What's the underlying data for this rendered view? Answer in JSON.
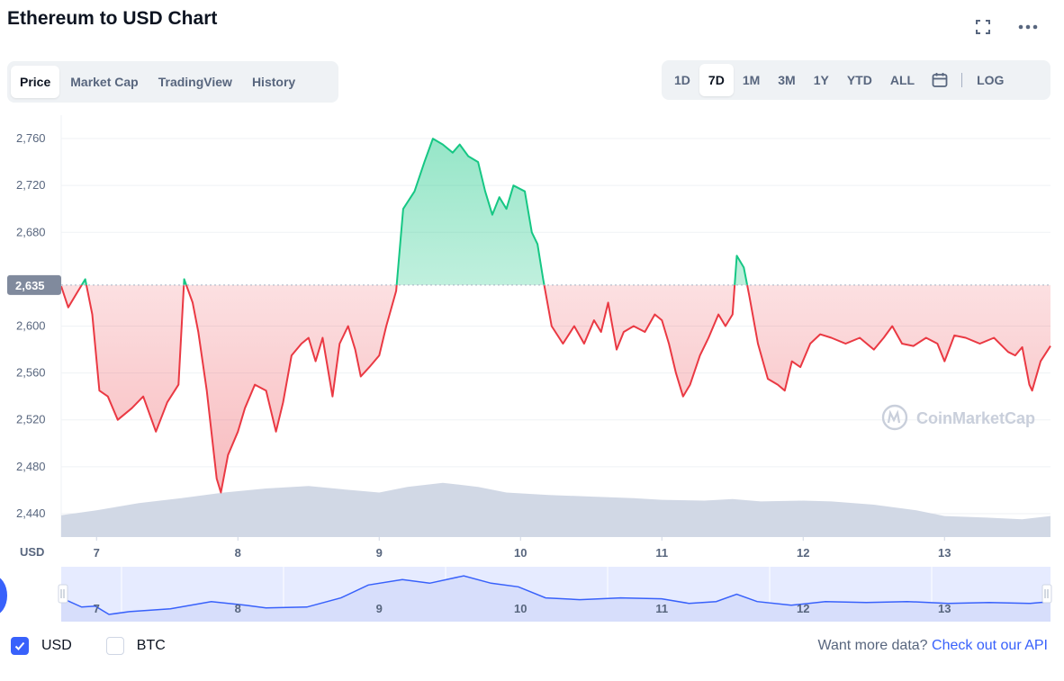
{
  "title": "Ethereum to USD Chart",
  "icons": {
    "expand": "expand-icon",
    "more": "more-icon",
    "calendar": "calendar-icon"
  },
  "tabs": [
    {
      "label": "Price",
      "active": true
    },
    {
      "label": "Market Cap",
      "active": false
    },
    {
      "label": "TradingView",
      "active": false
    },
    {
      "label": "History",
      "active": false
    }
  ],
  "ranges": {
    "items": [
      {
        "label": "1D",
        "active": false
      },
      {
        "label": "7D",
        "active": true
      },
      {
        "label": "1M",
        "active": false
      },
      {
        "label": "3M",
        "active": false
      },
      {
        "label": "1Y",
        "active": false
      },
      {
        "label": "YTD",
        "active": false
      },
      {
        "label": "ALL",
        "active": false
      }
    ],
    "log_label": "LOG"
  },
  "colors": {
    "up": "#16c784",
    "down": "#ea3943",
    "volume": "#cfd6e4",
    "navigator_line": "#3861fb",
    "navigator_fill": "#e6ebff",
    "current_price_bg": "#808a9d",
    "accent": "#3861fb"
  },
  "watermark": "CoinMarketCap",
  "chart_data": {
    "type": "line",
    "currency_label": "USD",
    "reference_price": 2635,
    "reference_label": "2,635",
    "ylim": [
      2420,
      2780
    ],
    "y_ticks": [
      2440,
      2480,
      2520,
      2560,
      2600,
      2680,
      2720,
      2760
    ],
    "y_tick_labels": [
      "2,440",
      "2,480",
      "2,520",
      "2,560",
      "2,600",
      "2,680",
      "2,720",
      "2,760"
    ],
    "xlim": [
      6.75,
      13.75
    ],
    "x_ticks": [
      7,
      8,
      9,
      10,
      11,
      12,
      13
    ],
    "x_tick_labels": [
      "7",
      "8",
      "9",
      "10",
      "11",
      "12",
      "13"
    ],
    "series": [
      {
        "values": [
          [
            6.75,
            2634
          ],
          [
            6.8,
            2616
          ],
          [
            6.87,
            2630
          ],
          [
            6.92,
            2640
          ],
          [
            6.97,
            2610
          ],
          [
            7.02,
            2545
          ],
          [
            7.08,
            2540
          ],
          [
            7.15,
            2520
          ],
          [
            7.25,
            2530
          ],
          [
            7.33,
            2540
          ],
          [
            7.42,
            2510
          ],
          [
            7.5,
            2535
          ],
          [
            7.58,
            2550
          ],
          [
            7.62,
            2640
          ],
          [
            7.68,
            2620
          ],
          [
            7.72,
            2595
          ],
          [
            7.78,
            2545
          ],
          [
            7.85,
            2470
          ],
          [
            7.88,
            2458
          ],
          [
            7.93,
            2490
          ],
          [
            8.0,
            2510
          ],
          [
            8.05,
            2530
          ],
          [
            8.12,
            2550
          ],
          [
            8.2,
            2545
          ],
          [
            8.27,
            2510
          ],
          [
            8.32,
            2535
          ],
          [
            8.38,
            2575
          ],
          [
            8.45,
            2585
          ],
          [
            8.5,
            2590
          ],
          [
            8.55,
            2570
          ],
          [
            8.6,
            2590
          ],
          [
            8.67,
            2540
          ],
          [
            8.72,
            2585
          ],
          [
            8.78,
            2600
          ],
          [
            8.83,
            2580
          ],
          [
            8.87,
            2557
          ],
          [
            8.93,
            2565
          ],
          [
            9.0,
            2575
          ],
          [
            9.05,
            2600
          ],
          [
            9.12,
            2630
          ],
          [
            9.17,
            2700
          ],
          [
            9.25,
            2715
          ],
          [
            9.32,
            2740
          ],
          [
            9.38,
            2760
          ],
          [
            9.45,
            2755
          ],
          [
            9.52,
            2748
          ],
          [
            9.57,
            2755
          ],
          [
            9.63,
            2745
          ],
          [
            9.7,
            2740
          ],
          [
            9.75,
            2715
          ],
          [
            9.8,
            2695
          ],
          [
            9.85,
            2710
          ],
          [
            9.9,
            2700
          ],
          [
            9.95,
            2720
          ],
          [
            10.03,
            2715
          ],
          [
            10.08,
            2680
          ],
          [
            10.12,
            2670
          ],
          [
            10.16,
            2640
          ],
          [
            10.22,
            2600
          ],
          [
            10.3,
            2585
          ],
          [
            10.38,
            2600
          ],
          [
            10.45,
            2585
          ],
          [
            10.52,
            2605
          ],
          [
            10.57,
            2595
          ],
          [
            10.62,
            2620
          ],
          [
            10.68,
            2580
          ],
          [
            10.73,
            2595
          ],
          [
            10.8,
            2600
          ],
          [
            10.88,
            2595
          ],
          [
            10.95,
            2610
          ],
          [
            11.0,
            2605
          ],
          [
            11.05,
            2585
          ],
          [
            11.1,
            2560
          ],
          [
            11.15,
            2540
          ],
          [
            11.2,
            2550
          ],
          [
            11.27,
            2575
          ],
          [
            11.33,
            2590
          ],
          [
            11.4,
            2610
          ],
          [
            11.45,
            2600
          ],
          [
            11.5,
            2610
          ],
          [
            11.53,
            2660
          ],
          [
            11.58,
            2650
          ],
          [
            11.62,
            2625
          ],
          [
            11.68,
            2585
          ],
          [
            11.75,
            2555
          ],
          [
            11.82,
            2550
          ],
          [
            11.87,
            2545
          ],
          [
            11.92,
            2570
          ],
          [
            11.98,
            2565
          ],
          [
            12.05,
            2585
          ],
          [
            12.12,
            2593
          ],
          [
            12.2,
            2590
          ],
          [
            12.3,
            2585
          ],
          [
            12.4,
            2590
          ],
          [
            12.5,
            2580
          ],
          [
            12.57,
            2590
          ],
          [
            12.63,
            2600
          ],
          [
            12.7,
            2585
          ],
          [
            12.78,
            2583
          ],
          [
            12.87,
            2590
          ],
          [
            12.95,
            2585
          ],
          [
            13.0,
            2570
          ],
          [
            13.07,
            2592
          ],
          [
            13.15,
            2590
          ],
          [
            13.25,
            2585
          ],
          [
            13.35,
            2590
          ],
          [
            13.45,
            2578
          ],
          [
            13.5,
            2575
          ],
          [
            13.55,
            2582
          ],
          [
            13.6,
            2550
          ],
          [
            13.62,
            2545
          ],
          [
            13.68,
            2570
          ],
          [
            13.75,
            2583
          ]
        ]
      }
    ],
    "volume_relative": [
      [
        6.75,
        0.27
      ],
      [
        7.0,
        0.33
      ],
      [
        7.3,
        0.42
      ],
      [
        7.6,
        0.48
      ],
      [
        7.9,
        0.55
      ],
      [
        8.2,
        0.6
      ],
      [
        8.5,
        0.63
      ],
      [
        8.8,
        0.58
      ],
      [
        9.0,
        0.55
      ],
      [
        9.2,
        0.62
      ],
      [
        9.45,
        0.67
      ],
      [
        9.7,
        0.62
      ],
      [
        9.9,
        0.55
      ],
      [
        10.2,
        0.52
      ],
      [
        10.5,
        0.5
      ],
      [
        10.8,
        0.48
      ],
      [
        11.0,
        0.46
      ],
      [
        11.3,
        0.45
      ],
      [
        11.5,
        0.47
      ],
      [
        11.7,
        0.44
      ],
      [
        12.0,
        0.45
      ],
      [
        12.2,
        0.44
      ],
      [
        12.5,
        0.4
      ],
      [
        12.8,
        0.33
      ],
      [
        13.0,
        0.26
      ],
      [
        13.3,
        0.24
      ],
      [
        13.55,
        0.22
      ],
      [
        13.75,
        0.26
      ]
    ],
    "navigator": {
      "values": [
        [
          6.5,
          2620
        ],
        [
          6.65,
          2570
        ],
        [
          6.75,
          2575
        ],
        [
          6.85,
          2530
        ],
        [
          7.0,
          2545
        ],
        [
          7.3,
          2560
        ],
        [
          7.6,
          2600
        ],
        [
          7.85,
          2580
        ],
        [
          8.0,
          2565
        ],
        [
          8.3,
          2570
        ],
        [
          8.55,
          2620
        ],
        [
          8.75,
          2690
        ],
        [
          9.0,
          2720
        ],
        [
          9.2,
          2700
        ],
        [
          9.45,
          2740
        ],
        [
          9.65,
          2700
        ],
        [
          9.85,
          2680
        ],
        [
          10.05,
          2620
        ],
        [
          10.3,
          2610
        ],
        [
          10.6,
          2620
        ],
        [
          10.9,
          2615
        ],
        [
          11.1,
          2590
        ],
        [
          11.3,
          2600
        ],
        [
          11.45,
          2640
        ],
        [
          11.6,
          2600
        ],
        [
          11.85,
          2580
        ],
        [
          12.1,
          2600
        ],
        [
          12.4,
          2595
        ],
        [
          12.7,
          2600
        ],
        [
          13.0,
          2590
        ],
        [
          13.3,
          2595
        ],
        [
          13.6,
          2590
        ],
        [
          13.75,
          2600
        ]
      ],
      "x_tick_labels": [
        "7",
        "8",
        "9",
        "10",
        "11",
        "12",
        "13"
      ]
    }
  },
  "legend": {
    "usd": {
      "label": "USD",
      "checked": true
    },
    "btc": {
      "label": "BTC",
      "checked": false
    }
  },
  "footer": {
    "more_text": "Want more data?",
    "link_text": "Check out our API"
  }
}
